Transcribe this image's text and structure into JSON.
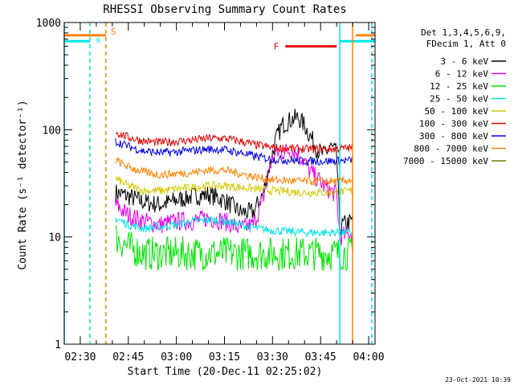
{
  "chart_data": {
    "type": "line",
    "title": "RHESSI Observing Summary Count Rates",
    "xlabel": "Start Time (20-Dec-11 02:25:02)",
    "ylabel": "Count Rate (s⁻¹ detector⁻¹)",
    "y_scale": "log",
    "ylim": [
      1,
      1000
    ],
    "xlim": [
      "02:25",
      "04:02"
    ],
    "y_ticks": [
      {
        "value": 1,
        "label": "1"
      },
      {
        "value": 10,
        "label": "10"
      },
      {
        "value": 100,
        "label": "100"
      },
      {
        "value": 1000,
        "label": "1000"
      }
    ],
    "x_ticks": [
      {
        "value": "02:30",
        "label": "02:30"
      },
      {
        "value": "02:45",
        "label": "02:45"
      },
      {
        "value": "03:00",
        "label": "03:00"
      },
      {
        "value": "03:15",
        "label": "03:15"
      },
      {
        "value": "03:30",
        "label": "03:30"
      },
      {
        "value": "03:45",
        "label": "03:45"
      },
      {
        "value": "04:00",
        "label": "04:00"
      }
    ],
    "legend": {
      "placement": "right",
      "header": [
        "Det 1,3,4,5,6,9,",
        "FDecim 1, Att 0"
      ],
      "entries": [
        {
          "label": "3 - 6 keV",
          "color": "#000000"
        },
        {
          "label": "6 - 12 keV",
          "color": "#e600e6"
        },
        {
          "label": "12 - 25 keV",
          "color": "#00e600"
        },
        {
          "label": "25 - 50 keV",
          "color": "#00e6e6"
        },
        {
          "label": "50 - 100 keV",
          "color": "#d2c800"
        },
        {
          "label": "100 - 300 keV",
          "color": "#e60000"
        },
        {
          "label": "300 - 800 keV",
          "color": "#0000e6"
        },
        {
          "label": "800 - 7000 keV",
          "color": "#ff8200"
        },
        {
          "label": "7000 - 15000 keV",
          "color": "#6e7800"
        }
      ]
    },
    "series": [
      {
        "name": "3 - 6 keV",
        "color": "#000000",
        "points": [
          [
            "02:41",
            26
          ],
          [
            "02:45",
            24
          ],
          [
            "02:50",
            21
          ],
          [
            "02:55",
            20
          ],
          [
            "03:00",
            22
          ],
          [
            "03:05",
            24
          ],
          [
            "03:10",
            25
          ],
          [
            "03:15",
            22
          ],
          [
            "03:20",
            17
          ],
          [
            "03:24",
            17
          ],
          [
            "03:27",
            25
          ],
          [
            "03:29",
            45
          ],
          [
            "03:31",
            80
          ],
          [
            "03:33",
            110
          ],
          [
            "03:36",
            125
          ],
          [
            "03:38",
            130
          ],
          [
            "03:40",
            110
          ],
          [
            "03:42",
            85
          ],
          [
            "03:44",
            65
          ],
          [
            "03:46",
            58
          ],
          [
            "03:48",
            70
          ],
          [
            "03:50",
            60
          ],
          [
            "03:51",
            12
          ],
          [
            "03:52",
            13
          ],
          [
            "03:55",
            14
          ]
        ]
      },
      {
        "name": "6 - 12 keV",
        "color": "#e600e6",
        "points": [
          [
            "02:41",
            20
          ],
          [
            "02:45",
            16
          ],
          [
            "02:50",
            14
          ],
          [
            "02:55",
            13
          ],
          [
            "03:00",
            14
          ],
          [
            "03:05",
            14
          ],
          [
            "03:10",
            15
          ],
          [
            "03:15",
            14
          ],
          [
            "03:20",
            12
          ],
          [
            "03:24",
            13
          ],
          [
            "03:27",
            22
          ],
          [
            "03:29",
            45
          ],
          [
            "03:31",
            60
          ],
          [
            "03:33",
            62
          ],
          [
            "03:36",
            65
          ],
          [
            "03:38",
            60
          ],
          [
            "03:40",
            50
          ],
          [
            "03:42",
            40
          ],
          [
            "03:44",
            35
          ],
          [
            "03:46",
            30
          ],
          [
            "03:48",
            27
          ],
          [
            "03:50",
            25
          ],
          [
            "03:51",
            10
          ],
          [
            "03:55",
            11
          ]
        ]
      },
      {
        "name": "12 - 25 keV",
        "color": "#00e600",
        "points": [
          [
            "02:41",
            10
          ],
          [
            "02:45",
            8
          ],
          [
            "02:50",
            7
          ],
          [
            "02:55",
            7
          ],
          [
            "03:00",
            7
          ],
          [
            "03:10",
            7
          ],
          [
            "03:20",
            7
          ],
          [
            "03:30",
            7
          ],
          [
            "03:40",
            7
          ],
          [
            "03:50",
            7
          ],
          [
            "03:55",
            7
          ]
        ]
      },
      {
        "name": "25 - 50 keV",
        "color": "#00e6e6",
        "points": [
          [
            "02:41",
            15
          ],
          [
            "02:45",
            13
          ],
          [
            "02:50",
            12
          ],
          [
            "02:55",
            12.5
          ],
          [
            "03:00",
            13
          ],
          [
            "03:05",
            14
          ],
          [
            "03:10",
            14.5
          ],
          [
            "03:15",
            14
          ],
          [
            "03:20",
            13
          ],
          [
            "03:25",
            12
          ],
          [
            "03:30",
            11.5
          ],
          [
            "03:40",
            11
          ],
          [
            "03:50",
            11
          ],
          [
            "03:55",
            11
          ]
        ]
      },
      {
        "name": "50 - 100 keV",
        "color": "#d2c800",
        "points": [
          [
            "02:41",
            35
          ],
          [
            "02:45",
            30
          ],
          [
            "02:50",
            27
          ],
          [
            "02:55",
            27
          ],
          [
            "03:00",
            28
          ],
          [
            "03:05",
            29
          ],
          [
            "03:10",
            30
          ],
          [
            "03:15",
            30
          ],
          [
            "03:20",
            29
          ],
          [
            "03:25",
            28
          ],
          [
            "03:30",
            27
          ],
          [
            "03:40",
            26
          ],
          [
            "03:50",
            26
          ],
          [
            "03:55",
            27
          ]
        ]
      },
      {
        "name": "100 - 300 keV",
        "color": "#e60000",
        "points": [
          [
            "02:41",
            95
          ],
          [
            "02:45",
            85
          ],
          [
            "02:50",
            78
          ],
          [
            "02:55",
            76
          ],
          [
            "03:00",
            78
          ],
          [
            "03:05",
            80
          ],
          [
            "03:10",
            83
          ],
          [
            "03:15",
            83
          ],
          [
            "03:20",
            78
          ],
          [
            "03:25",
            72
          ],
          [
            "03:30",
            68
          ],
          [
            "03:40",
            66
          ],
          [
            "03:50",
            66
          ],
          [
            "03:55",
            68
          ]
        ]
      },
      {
        "name": "300 - 800 keV",
        "color": "#0000e6",
        "points": [
          [
            "02:41",
            78
          ],
          [
            "02:45",
            70
          ],
          [
            "02:50",
            63
          ],
          [
            "02:55",
            61
          ],
          [
            "03:00",
            62
          ],
          [
            "03:05",
            64
          ],
          [
            "03:10",
            66
          ],
          [
            "03:15",
            65
          ],
          [
            "03:20",
            61
          ],
          [
            "03:25",
            56
          ],
          [
            "03:30",
            53
          ],
          [
            "03:40",
            51
          ],
          [
            "03:50",
            51
          ],
          [
            "03:55",
            52
          ]
        ]
      },
      {
        "name": "800 - 7000 keV",
        "color": "#ff8200",
        "points": [
          [
            "02:41",
            52
          ],
          [
            "02:45",
            45
          ],
          [
            "02:50",
            40
          ],
          [
            "02:55",
            38
          ],
          [
            "03:00",
            39
          ],
          [
            "03:05",
            40
          ],
          [
            "03:10",
            42
          ],
          [
            "03:15",
            42
          ],
          [
            "03:20",
            39
          ],
          [
            "03:25",
            36
          ],
          [
            "03:30",
            34
          ],
          [
            "03:40",
            33
          ],
          [
            "03:50",
            33
          ],
          [
            "03:55",
            34
          ]
        ]
      }
    ],
    "annotations": {
      "flare_bar": {
        "label": "F",
        "start": "03:34",
        "end": "03:50",
        "y": 600,
        "color": "#e60000"
      },
      "saa_bars": {
        "label": "S",
        "color": "#ff8200",
        "y": 760,
        "segments": [
          [
            "02:25",
            "02:38"
          ],
          [
            "03:56",
            "04:02"
          ]
        ],
        "lines": [
          "02:38",
          "03:55"
        ]
      },
      "night_bars": {
        "label": "N",
        "color": "#00e6e6",
        "y": 670,
        "segments": [
          [
            "02:25",
            "02:33"
          ],
          [
            "03:51",
            "04:02"
          ]
        ],
        "solid_lines": [
          "02:25",
          "03:51"
        ],
        "dashed_lines": [
          "02:33",
          "04:01"
        ]
      }
    },
    "grid": false
  },
  "footer": {
    "timestamp": "23-Oct-2021 10:39"
  }
}
